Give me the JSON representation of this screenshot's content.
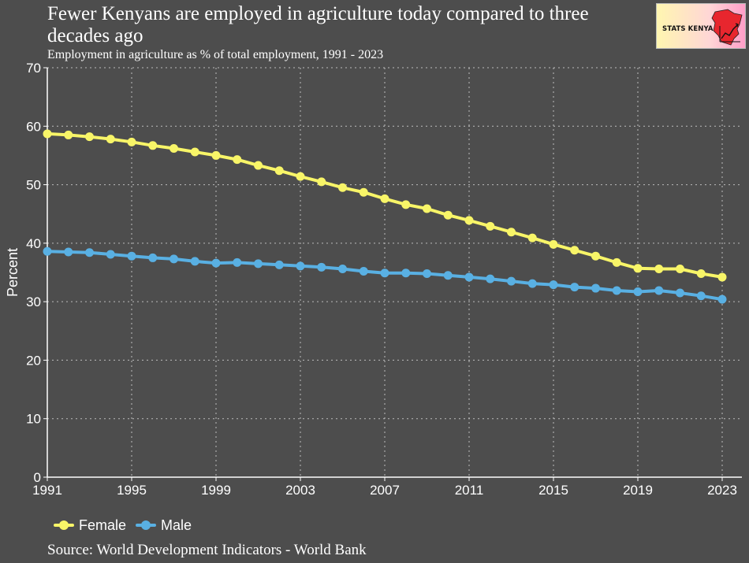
{
  "header": {
    "title": "Fewer Kenyans are employed in agriculture today compared to three decades ago",
    "subtitle": "Employment in agriculture as % of total employment, 1991 - 2023",
    "logo_text": "STATS KENYA"
  },
  "footer": {
    "source": "Source: World Development Indicators - World Bank"
  },
  "chart_data": {
    "type": "line",
    "title": "Fewer Kenyans are employed in agriculture today compared to three decades ago",
    "subtitle": "Employment in agriculture as % of total employment, 1991 - 2023",
    "xlabel": "",
    "ylabel": "Percent",
    "xlim": [
      1991,
      2023
    ],
    "ylim": [
      0,
      70
    ],
    "x_ticks": [
      1991,
      1995,
      1999,
      2003,
      2007,
      2011,
      2015,
      2019,
      2023
    ],
    "y_ticks": [
      0,
      10,
      20,
      30,
      40,
      50,
      60,
      70
    ],
    "grid": true,
    "legend_position": "bottom-left",
    "x": [
      1991,
      1992,
      1993,
      1994,
      1995,
      1996,
      1997,
      1998,
      1999,
      2000,
      2001,
      2002,
      2003,
      2004,
      2005,
      2006,
      2007,
      2008,
      2009,
      2010,
      2011,
      2012,
      2013,
      2014,
      2015,
      2016,
      2017,
      2018,
      2019,
      2020,
      2021,
      2022,
      2023
    ],
    "series": [
      {
        "name": "Female",
        "color": "#f8f568",
        "values": [
          58.7,
          58.5,
          58.2,
          57.8,
          57.3,
          56.7,
          56.2,
          55.6,
          55.0,
          54.3,
          53.3,
          52.4,
          51.4,
          50.5,
          49.5,
          48.7,
          47.6,
          46.6,
          45.9,
          44.8,
          43.9,
          42.9,
          41.9,
          40.9,
          39.8,
          38.8,
          37.8,
          36.7,
          35.7,
          35.6,
          35.6,
          34.8,
          34.2
        ]
      },
      {
        "name": "Male",
        "color": "#59b0e3",
        "values": [
          38.6,
          38.5,
          38.4,
          38.1,
          37.8,
          37.5,
          37.3,
          36.9,
          36.6,
          36.7,
          36.5,
          36.3,
          36.1,
          35.9,
          35.6,
          35.2,
          34.9,
          34.9,
          34.8,
          34.5,
          34.2,
          33.9,
          33.5,
          33.1,
          32.9,
          32.5,
          32.3,
          31.9,
          31.7,
          31.9,
          31.5,
          31.0,
          30.4
        ]
      }
    ]
  }
}
